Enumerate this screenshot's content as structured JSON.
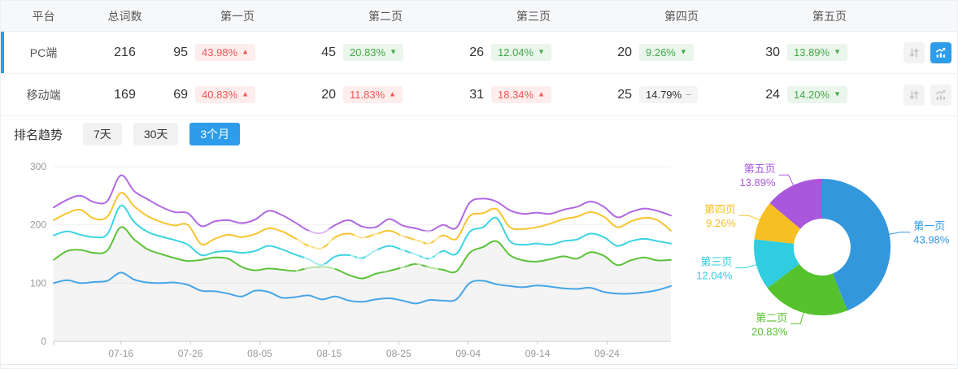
{
  "table": {
    "columns": [
      "平台",
      "总词数",
      "第一页",
      "第二页",
      "第三页",
      "第四页",
      "第五页"
    ],
    "rows": [
      {
        "platform": "PC端",
        "total": "216",
        "selected": true,
        "chart_active": true,
        "pages": [
          {
            "count": "95",
            "pct": "43.98%",
            "dir": "up",
            "tone": "red"
          },
          {
            "count": "45",
            "pct": "20.83%",
            "dir": "down",
            "tone": "green"
          },
          {
            "count": "26",
            "pct": "12.04%",
            "dir": "down",
            "tone": "green"
          },
          {
            "count": "20",
            "pct": "9.26%",
            "dir": "down",
            "tone": "green"
          },
          {
            "count": "30",
            "pct": "13.89%",
            "dir": "down",
            "tone": "green"
          }
        ]
      },
      {
        "platform": "移动端",
        "total": "169",
        "selected": false,
        "chart_active": false,
        "pages": [
          {
            "count": "69",
            "pct": "40.83%",
            "dir": "up",
            "tone": "red"
          },
          {
            "count": "20",
            "pct": "11.83%",
            "dir": "up",
            "tone": "red"
          },
          {
            "count": "31",
            "pct": "18.34%",
            "dir": "up",
            "tone": "red"
          },
          {
            "count": "25",
            "pct": "14.79%",
            "dir": "flat",
            "tone": "gray"
          },
          {
            "count": "24",
            "pct": "14.20%",
            "dir": "down",
            "tone": "green"
          }
        ]
      }
    ],
    "icons": {
      "sort": "sort-arrows-icon",
      "chart": "trend-chart-icon"
    }
  },
  "trend": {
    "label": "排名趋势",
    "ranges": [
      {
        "label": "7天",
        "active": false
      },
      {
        "label": "30天",
        "active": false
      },
      {
        "label": "3个月",
        "active": true
      }
    ]
  },
  "watermark": "爱站网",
  "colors": {
    "accent_blue": "#2d9cea",
    "badge_red_text": "#f25555",
    "badge_red_bg": "#fdeded",
    "badge_green_text": "#44a94c",
    "badge_green_bg": "#eaf6eb",
    "badge_gray_bg": "#f4f4f4",
    "axis_line": "#cccccc",
    "axis_text": "#999999",
    "grid_line": "#efefef"
  },
  "chart_data": [
    {
      "type": "line",
      "title": "排名趋势 (3个月)",
      "xlabel": "",
      "ylabel": "",
      "ylim": [
        0,
        300
      ],
      "y_ticks": [
        "0",
        "100",
        "200",
        "300"
      ],
      "grid": true,
      "legend_position": "none",
      "x_tick_labels": [
        "07-16",
        "07-26",
        "08-05",
        "08-15",
        "08-25",
        "09-04",
        "09-14",
        "09-24"
      ],
      "series": [
        {
          "name": "series1",
          "color": "#45a5e6",
          "area": false,
          "values": [
            100,
            105,
            100,
            102,
            104,
            118,
            106,
            101,
            100,
            101,
            97,
            87,
            86,
            82,
            77,
            87,
            85,
            75,
            76,
            79,
            72,
            77,
            70,
            68,
            72,
            74,
            70,
            65,
            71,
            70,
            72,
            100,
            104,
            98,
            95,
            93,
            96,
            94,
            91,
            90,
            92,
            85,
            82,
            82,
            84,
            88,
            95
          ]
        },
        {
          "name": "series2",
          "color": "#5cc239",
          "area": true,
          "values": [
            140,
            155,
            157,
            152,
            156,
            196,
            175,
            158,
            150,
            143,
            138,
            140,
            144,
            142,
            128,
            122,
            125,
            123,
            121,
            126,
            128,
            124,
            114,
            108,
            116,
            121,
            127,
            133,
            127,
            123,
            120,
            152,
            162,
            172,
            148,
            139,
            137,
            141,
            146,
            142,
            153,
            147,
            131,
            139,
            144,
            139,
            140
          ]
        },
        {
          "name": "series3",
          "color": "#3dd3e2",
          "area": false,
          "values": [
            182,
            189,
            183,
            179,
            184,
            233,
            205,
            188,
            180,
            174,
            166,
            148,
            153,
            155,
            152,
            155,
            164,
            158,
            149,
            141,
            131,
            146,
            148,
            143,
            156,
            164,
            157,
            149,
            142,
            155,
            150,
            188,
            196,
            212,
            172,
            166,
            168,
            166,
            172,
            175,
            185,
            179,
            164,
            172,
            176,
            172,
            168
          ]
        },
        {
          "name": "series4",
          "color": "#f7c52f",
          "area": false,
          "values": [
            208,
            220,
            226,
            211,
            214,
            255,
            232,
            215,
            205,
            199,
            200,
            167,
            176,
            183,
            179,
            184,
            194,
            189,
            177,
            164,
            160,
            179,
            185,
            178,
            184,
            190,
            181,
            174,
            168,
            182,
            176,
            215,
            220,
            227,
            196,
            193,
            196,
            202,
            210,
            214,
            222,
            214,
            196,
            206,
            212,
            208,
            190
          ]
        },
        {
          "name": "series5",
          "color": "#b168e2",
          "area": false,
          "values": [
            230,
            243,
            250,
            239,
            241,
            285,
            258,
            244,
            231,
            222,
            220,
            198,
            206,
            208,
            203,
            209,
            224,
            217,
            204,
            190,
            186,
            200,
            208,
            197,
            196,
            210,
            199,
            194,
            189,
            200,
            195,
            238,
            245,
            240,
            225,
            219,
            221,
            219,
            226,
            231,
            240,
            231,
            213,
            222,
            228,
            224,
            216
          ]
        }
      ]
    },
    {
      "type": "pie",
      "donut": true,
      "legend_position": "outside-labels",
      "slices": [
        {
          "label": "第一页",
          "value": 43.98,
          "display": "43.98%",
          "color": "#3397dc"
        },
        {
          "label": "第二页",
          "value": 20.83,
          "display": "20.83%",
          "color": "#56c22d"
        },
        {
          "label": "第三页",
          "value": 12.04,
          "display": "12.04%",
          "color": "#2fcddf"
        },
        {
          "label": "第四页",
          "value": 9.26,
          "display": "9.26%",
          "color": "#f6c022"
        },
        {
          "label": "第五页",
          "value": 13.89,
          "display": "13.89%",
          "color": "#a957dc"
        }
      ]
    }
  ]
}
